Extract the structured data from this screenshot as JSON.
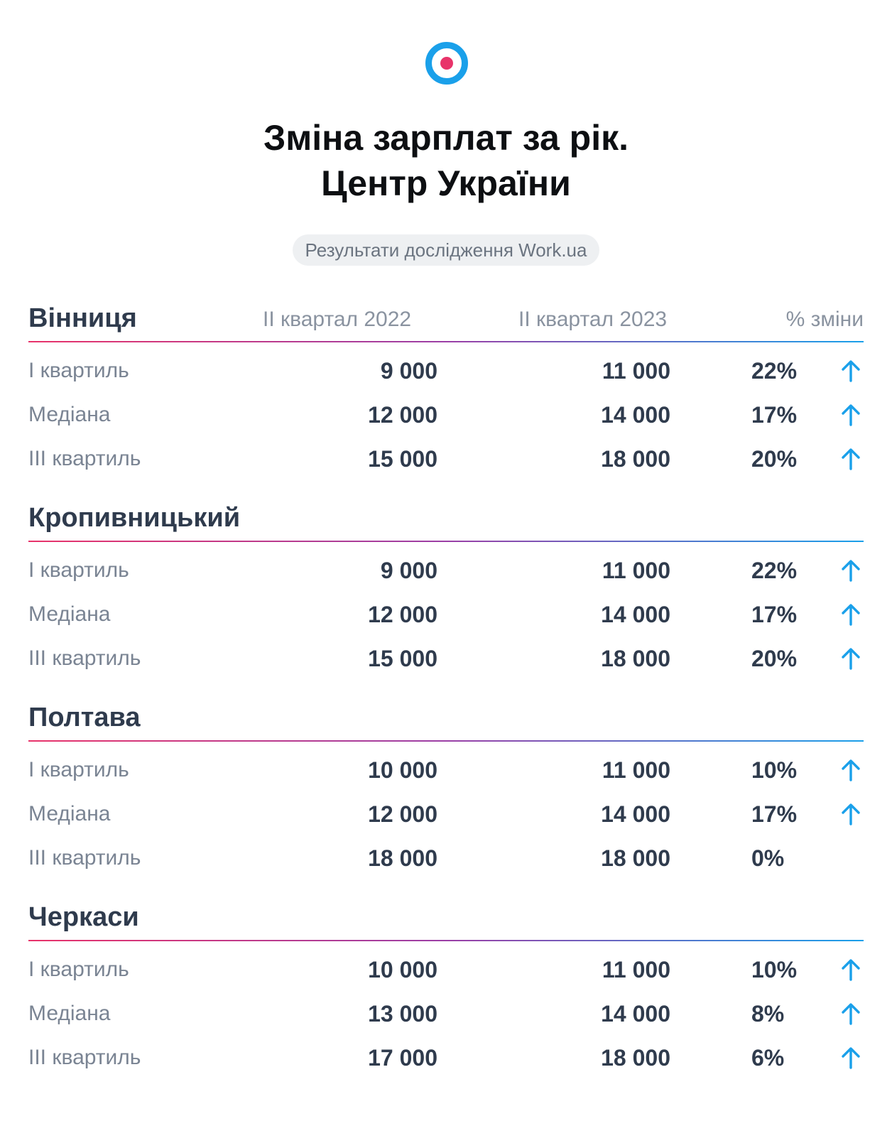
{
  "header": {
    "title_line1": "Зміна зарплат за рік.",
    "title_line2": "Центр України",
    "badge": "Результати дослідження Work.ua"
  },
  "colors": {
    "accent_blue": "#1aa0ea",
    "accent_pink": "#e8336a"
  },
  "chart_data": {
    "type": "table",
    "columns": [
      "II квартал 2022",
      "II квартал 2023",
      "% зміни"
    ],
    "cities": [
      {
        "name": "Вінниця",
        "rows": [
          {
            "label": "I квартиль",
            "q2_2022": "9 000",
            "q2_2023": "11 000",
            "change": "22%",
            "up": true
          },
          {
            "label": "Медіана",
            "q2_2022": "12 000",
            "q2_2023": "14 000",
            "change": "17%",
            "up": true
          },
          {
            "label": "III квартиль",
            "q2_2022": "15 000",
            "q2_2023": "18 000",
            "change": "20%",
            "up": true
          }
        ]
      },
      {
        "name": "Кропивницький",
        "rows": [
          {
            "label": "I квартиль",
            "q2_2022": "9 000",
            "q2_2023": "11 000",
            "change": "22%",
            "up": true
          },
          {
            "label": "Медіана",
            "q2_2022": "12 000",
            "q2_2023": "14 000",
            "change": "17%",
            "up": true
          },
          {
            "label": "III квартиль",
            "q2_2022": "15 000",
            "q2_2023": "18 000",
            "change": "20%",
            "up": true
          }
        ]
      },
      {
        "name": "Полтава",
        "rows": [
          {
            "label": "I квартиль",
            "q2_2022": "10 000",
            "q2_2023": "11 000",
            "change": "10%",
            "up": true
          },
          {
            "label": "Медіана",
            "q2_2022": "12 000",
            "q2_2023": "14 000",
            "change": "17%",
            "up": true
          },
          {
            "label": "III квартиль",
            "q2_2022": "18 000",
            "q2_2023": "18 000",
            "change": "0%",
            "up": false
          }
        ]
      },
      {
        "name": "Черкаси",
        "rows": [
          {
            "label": "I квартиль",
            "q2_2022": "10 000",
            "q2_2023": "11 000",
            "change": "10%",
            "up": true
          },
          {
            "label": "Медіана",
            "q2_2022": "13 000",
            "q2_2023": "14 000",
            "change": "8%",
            "up": true
          },
          {
            "label": "III квартиль",
            "q2_2022": "17 000",
            "q2_2023": "18 000",
            "change": "6%",
            "up": true
          }
        ]
      }
    ]
  }
}
